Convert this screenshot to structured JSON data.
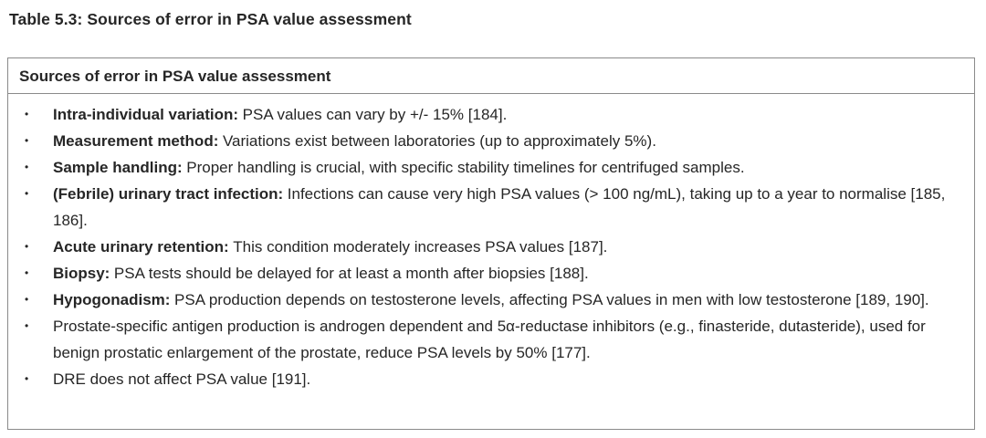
{
  "caption": "Table 5.3: Sources of error in PSA value assessment",
  "table": {
    "header": "Sources of error in PSA value assessment",
    "bullet_glyph": "•",
    "items": [
      {
        "lead": "Intra-individual variation:",
        "text": "PSA values can vary by +/- 15% [184]."
      },
      {
        "lead": "Measurement method:",
        "text": "Variations exist between laboratories (up to approximately 5%)."
      },
      {
        "lead": "Sample handling:",
        "text": "Proper handling is crucial, with specific stability timelines for centrifuged samples."
      },
      {
        "lead": "(Febrile) urinary tract infection:",
        "text": "Infections can cause very high PSA values (> 100 ng/mL), taking up to a year to normalise [185, 186]."
      },
      {
        "lead": "Acute urinary retention:",
        "text": "This condition moderately increases PSA values [187]."
      },
      {
        "lead": "Biopsy:",
        "text": "PSA tests should be delayed for at least a month after biopsies [188]."
      },
      {
        "lead": "Hypogonadism:",
        "text": "PSA production depends on testosterone levels, affecting PSA values in men with low testosterone [189, 190]."
      },
      {
        "lead": "",
        "text": "Prostate-specific antigen production is androgen dependent and 5α-reductase inhibitors (e.g., finasteride, dutasteride), used for benign prostatic enlargement of the prostate, reduce PSA levels by 50% [177]."
      },
      {
        "lead": "",
        "text": "DRE does not affect PSA value [191]."
      }
    ],
    "colors": {
      "text": "#262626",
      "border": "#8a8a8a",
      "background": "#ffffff"
    }
  }
}
